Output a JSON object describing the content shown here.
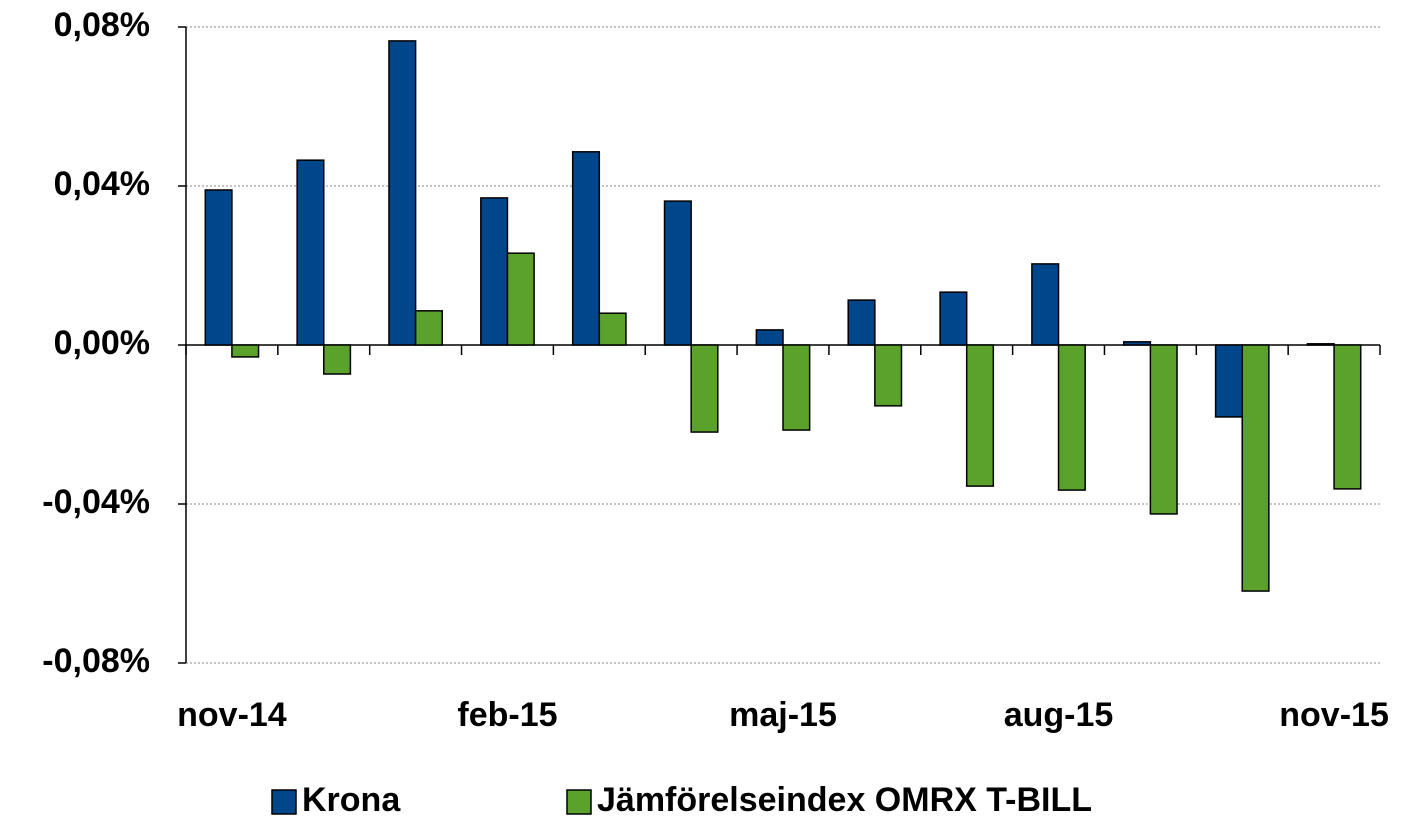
{
  "chart_data": {
    "type": "bar",
    "categories": [
      "nov-14",
      null,
      null,
      "feb-15",
      null,
      null,
      "maj-15",
      null,
      null,
      "aug-15",
      null,
      null,
      "nov-15"
    ],
    "series": [
      {
        "name": "Krona",
        "color": "#00468b",
        "values": [
          0.039,
          0.0465,
          0.0765,
          0.037,
          0.0486,
          0.0362,
          0.0038,
          0.0113,
          0.0133,
          0.0204,
          0.0008,
          -0.0181,
          0.0003
        ]
      },
      {
        "name": "Jämförelseindex OMRX T-BILL",
        "color": "#5ba22d",
        "values": [
          -0.003,
          -0.0073,
          0.0086,
          0.0231,
          0.008,
          -0.0219,
          -0.0214,
          -0.0153,
          -0.0355,
          -0.0365,
          -0.0425,
          -0.0619,
          -0.0362
        ]
      }
    ],
    "ylim": [
      -0.08,
      0.08
    ],
    "yticks": [
      {
        "value": -0.08,
        "label": "-0,08%"
      },
      {
        "value": -0.04,
        "label": "-0,04%"
      },
      {
        "value": 0,
        "label": "0,00%"
      },
      {
        "value": 0.04,
        "label": "0,04%"
      },
      {
        "value": 0.08,
        "label": "0,08%"
      }
    ],
    "grid": true,
    "legend": "bottom"
  }
}
